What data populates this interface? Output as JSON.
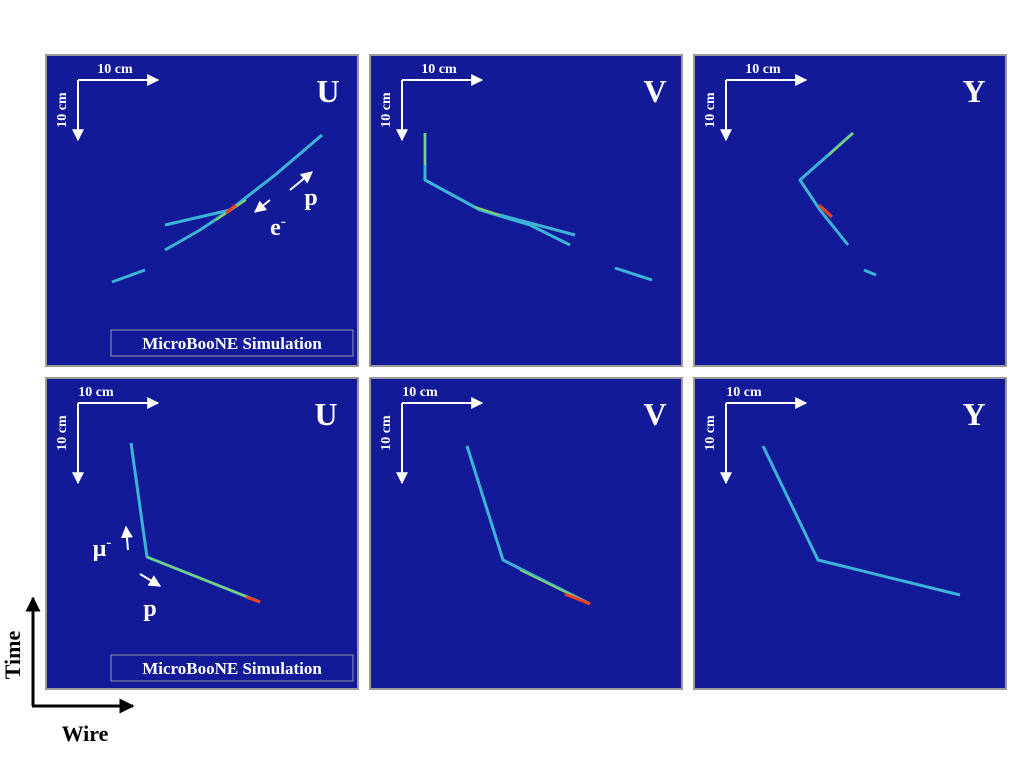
{
  "panels": [
    {
      "plane": "U",
      "scale_x": "10 cm",
      "scale_y": "10 cm",
      "labels": [
        {
          "text": "p"
        },
        {
          "text": "e",
          "sup": "-"
        }
      ],
      "watermark": "MicroBooNE Simulation"
    },
    {
      "plane": "V",
      "scale_x": "10 cm",
      "scale_y": "10 cm"
    },
    {
      "plane": "Y",
      "scale_x": "10 cm",
      "scale_y": "10 cm"
    },
    {
      "plane": "U",
      "scale_x": "10 cm",
      "scale_y": "10 cm",
      "labels": [
        {
          "text": "μ",
          "sup": "-"
        },
        {
          "text": "p"
        }
      ],
      "watermark": "MicroBooNE Simulation"
    },
    {
      "plane": "V",
      "scale_x": "10 cm",
      "scale_y": "10 cm"
    },
    {
      "plane": "Y",
      "scale_x": "10 cm",
      "scale_y": "10 cm"
    }
  ],
  "axes": {
    "time": "Time",
    "wire": "Wire"
  }
}
